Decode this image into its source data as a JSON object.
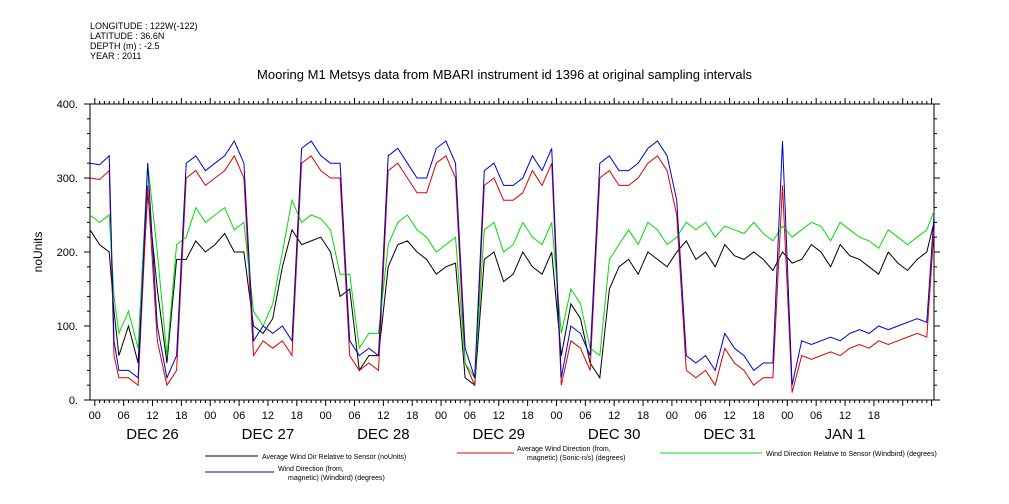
{
  "meta": {
    "longitude": "LONGITUDE : 122W(-122)",
    "latitude": "LATITUDE : 36.6N",
    "depth": "DEPTH (m) : -2.5",
    "year": "YEAR : 2011"
  },
  "chart_data": {
    "type": "line",
    "title": "Mooring M1 Metsys data from MBARI instrument id 1396 at original sampling intervals",
    "ylabel": "noUnits",
    "xlabel": "",
    "ylim": [
      0,
      400
    ],
    "yticks": [
      "0.",
      "100.",
      "200.",
      "300.",
      "400."
    ],
    "x_unit": "hours since 2011-12-25T23:00",
    "xlim": [
      0,
      175.5
    ],
    "hour_ticks": [
      "00",
      "06",
      "12",
      "18",
      "00",
      "06",
      "12",
      "18",
      "00",
      "06",
      "12",
      "18",
      "00",
      "06",
      "12",
      "18",
      "00",
      "06",
      "12",
      "18",
      "00",
      "06",
      "12",
      "18",
      "00",
      "06",
      "12",
      "18"
    ],
    "day_labels": [
      "DEC 26",
      "DEC 27",
      "DEC 28",
      "DEC 29",
      "DEC 30",
      "DEC 31",
      "JAN  1"
    ],
    "grid": false,
    "legend_position": "bottom",
    "series": [
      {
        "name": "Average Wind Dir Relative to Sensor (noUnits)",
        "color": "#000000",
        "x": [
          0,
          2,
          4,
          5,
          6,
          8,
          10,
          12,
          14,
          16,
          18,
          20,
          22,
          24,
          26,
          28,
          30,
          32,
          34,
          36,
          38,
          40,
          42,
          44,
          46,
          48,
          50,
          52,
          54,
          56,
          58,
          60,
          62,
          64,
          66,
          68,
          70,
          72,
          74,
          76,
          78,
          80,
          82,
          84,
          86,
          88,
          90,
          92,
          94,
          96,
          98,
          100,
          102,
          104,
          106,
          108,
          110,
          112,
          114,
          116,
          118,
          120,
          122,
          124,
          126,
          128,
          130,
          132,
          134,
          136,
          138,
          140,
          142,
          144,
          146,
          148,
          150,
          152,
          154,
          156,
          158,
          160,
          162,
          164,
          166,
          168,
          170,
          172,
          174,
          175.5
        ],
        "values": [
          230,
          210,
          200,
          120,
          60,
          100,
          50,
          280,
          150,
          50,
          190,
          190,
          215,
          200,
          210,
          225,
          200,
          200,
          100,
          90,
          110,
          180,
          230,
          210,
          215,
          220,
          200,
          140,
          150,
          40,
          60,
          60,
          180,
          210,
          215,
          200,
          190,
          170,
          180,
          185,
          30,
          20,
          190,
          200,
          160,
          170,
          200,
          180,
          170,
          200,
          60,
          130,
          110,
          50,
          30,
          150,
          180,
          190,
          170,
          200,
          190,
          180,
          200,
          215,
          190,
          200,
          180,
          210,
          195,
          190,
          200,
          190,
          175,
          200,
          185,
          190,
          210,
          200,
          180,
          210,
          195,
          190,
          180,
          170,
          200,
          185,
          175,
          190,
          200,
          240
        ]
      },
      {
        "name": "Average Wind Direction (from, magnetic) (Sonic-n/s) (degrees)",
        "color": "#dd0000",
        "x": [
          0,
          2,
          4,
          5,
          6,
          8,
          10,
          12,
          14,
          16,
          18,
          20,
          22,
          24,
          26,
          28,
          30,
          32,
          34,
          36,
          38,
          40,
          42,
          44,
          46,
          48,
          50,
          52,
          54,
          56,
          58,
          60,
          62,
          64,
          66,
          68,
          70,
          72,
          74,
          76,
          78,
          80,
          82,
          84,
          86,
          88,
          90,
          92,
          94,
          96,
          98,
          100,
          102,
          104,
          106,
          108,
          110,
          112,
          114,
          116,
          118,
          120,
          122,
          124,
          126,
          128,
          130,
          132,
          134,
          136,
          138,
          140,
          142,
          144,
          146,
          148,
          150,
          152,
          154,
          156,
          158,
          160,
          162,
          164,
          166,
          168,
          170,
          172,
          174,
          175.5
        ],
        "values": [
          300,
          298,
          310,
          60,
          30,
          30,
          20,
          290,
          80,
          20,
          40,
          300,
          310,
          290,
          300,
          310,
          330,
          300,
          60,
          80,
          70,
          80,
          60,
          320,
          330,
          310,
          300,
          300,
          60,
          40,
          50,
          40,
          310,
          320,
          300,
          280,
          280,
          320,
          330,
          300,
          50,
          20,
          290,
          300,
          270,
          270,
          280,
          310,
          290,
          320,
          20,
          80,
          70,
          40,
          300,
          310,
          290,
          290,
          300,
          320,
          330,
          310,
          250,
          40,
          30,
          40,
          20,
          70,
          50,
          40,
          20,
          30,
          30,
          290,
          10,
          60,
          55,
          60,
          65,
          60,
          70,
          75,
          70,
          80,
          75,
          80,
          85,
          90,
          85,
          230
        ]
      },
      {
        "name": "Wind Direction Relative to Sensor (Windbird) (degrees)",
        "color": "#00dd00",
        "x": [
          0,
          2,
          4,
          5,
          6,
          8,
          10,
          12,
          14,
          16,
          18,
          20,
          22,
          24,
          26,
          28,
          30,
          32,
          34,
          36,
          38,
          40,
          42,
          44,
          46,
          48,
          50,
          52,
          54,
          56,
          58,
          60,
          62,
          64,
          66,
          68,
          70,
          72,
          74,
          76,
          78,
          80,
          82,
          84,
          86,
          88,
          90,
          92,
          94,
          96,
          98,
          100,
          102,
          104,
          106,
          108,
          110,
          112,
          114,
          116,
          118,
          120,
          122,
          124,
          126,
          128,
          130,
          132,
          134,
          136,
          138,
          140,
          142,
          144,
          146,
          148,
          150,
          152,
          154,
          156,
          158,
          160,
          162,
          164,
          166,
          168,
          170,
          172,
          174,
          175.5
        ],
        "values": [
          250,
          240,
          250,
          140,
          90,
          120,
          70,
          320,
          200,
          60,
          210,
          220,
          260,
          240,
          250,
          260,
          230,
          240,
          120,
          100,
          130,
          200,
          270,
          240,
          250,
          245,
          230,
          170,
          170,
          70,
          90,
          90,
          210,
          240,
          250,
          230,
          220,
          200,
          210,
          220,
          50,
          30,
          230,
          240,
          200,
          210,
          240,
          220,
          210,
          240,
          90,
          150,
          130,
          70,
          60,
          190,
          210,
          230,
          210,
          240,
          230,
          210,
          220,
          240,
          230,
          240,
          220,
          235,
          230,
          225,
          240,
          225,
          215,
          235,
          220,
          230,
          240,
          235,
          215,
          240,
          230,
          220,
          215,
          205,
          230,
          220,
          210,
          220,
          230,
          255
        ]
      },
      {
        "name": "Wind Direction (from, magnetic) (Windbird) (degrees)",
        "color": "#0000cc",
        "x": [
          0,
          2,
          4,
          5,
          6,
          8,
          10,
          12,
          14,
          16,
          18,
          20,
          22,
          24,
          26,
          28,
          30,
          32,
          34,
          36,
          38,
          40,
          42,
          44,
          46,
          48,
          50,
          52,
          54,
          56,
          58,
          60,
          62,
          64,
          66,
          68,
          70,
          72,
          74,
          76,
          78,
          80,
          82,
          84,
          86,
          88,
          90,
          92,
          94,
          96,
          98,
          100,
          102,
          104,
          106,
          108,
          110,
          112,
          114,
          116,
          118,
          120,
          122,
          124,
          126,
          128,
          130,
          132,
          134,
          136,
          138,
          140,
          142,
          144,
          146,
          148,
          150,
          152,
          154,
          156,
          158,
          160,
          162,
          164,
          166,
          168,
          170,
          172,
          174,
          175.5
        ],
        "values": [
          320,
          318,
          330,
          80,
          40,
          40,
          30,
          320,
          100,
          30,
          60,
          320,
          330,
          310,
          320,
          330,
          350,
          320,
          80,
          100,
          90,
          100,
          80,
          340,
          350,
          330,
          320,
          320,
          80,
          60,
          70,
          60,
          330,
          340,
          320,
          300,
          300,
          340,
          350,
          320,
          70,
          30,
          310,
          320,
          290,
          290,
          300,
          330,
          310,
          340,
          30,
          100,
          90,
          60,
          320,
          330,
          310,
          310,
          320,
          340,
          350,
          330,
          270,
          60,
          50,
          60,
          40,
          90,
          70,
          60,
          40,
          50,
          50,
          350,
          20,
          80,
          75,
          80,
          85,
          80,
          90,
          95,
          90,
          100,
          95,
          100,
          105,
          110,
          105,
          250
        ]
      }
    ]
  }
}
